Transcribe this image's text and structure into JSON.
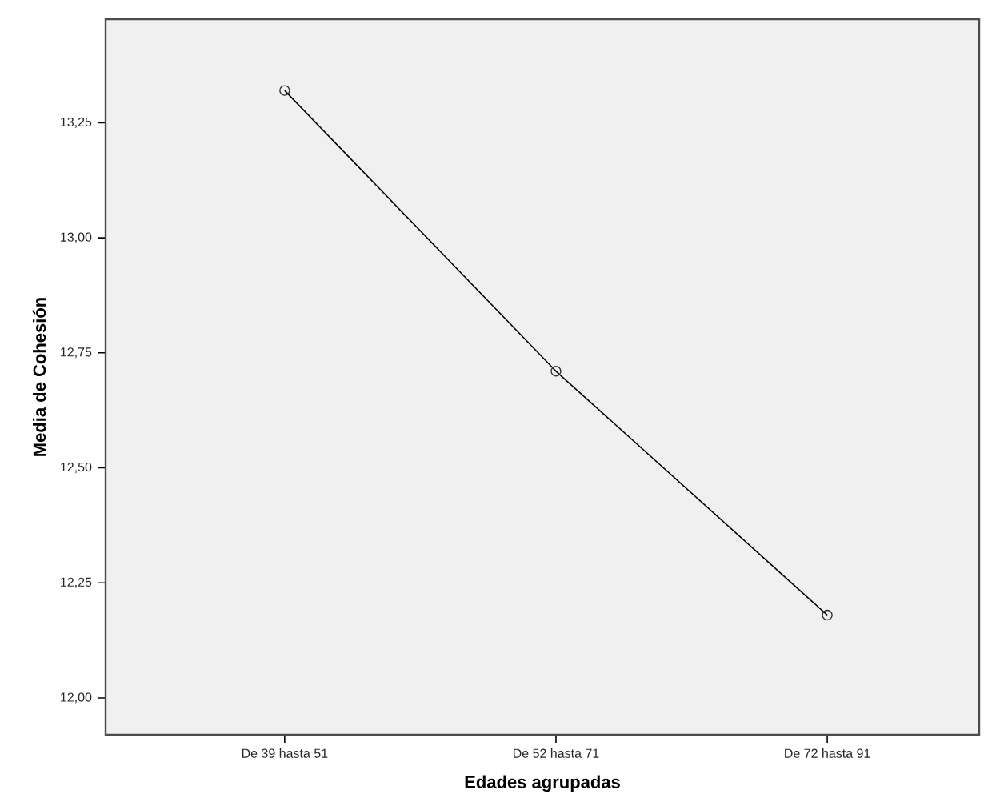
{
  "chart_data": {
    "type": "line",
    "xlabel": "Edades agrupadas",
    "ylabel": "Media de Cohesión",
    "categories": [
      "De 39 hasta 51",
      "De 52 hasta 71",
      "De 72 hasta 91"
    ],
    "values": [
      13.32,
      12.71,
      12.18
    ],
    "color": "#000000",
    "marker": "circle",
    "line_style": "solid",
    "ylim": [
      11.92,
      13.475
    ],
    "yticks": [
      {
        "value": 12.0,
        "label": "12,00"
      },
      {
        "value": 12.25,
        "label": "12,25"
      },
      {
        "value": 12.5,
        "label": "12,50"
      },
      {
        "value": 12.75,
        "label": "12,75"
      },
      {
        "value": 13.0,
        "label": "13,00"
      },
      {
        "value": 13.25,
        "label": "13,25"
      }
    ],
    "grid": false
  }
}
